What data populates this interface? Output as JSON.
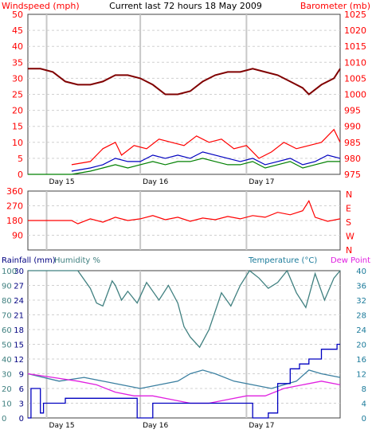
{
  "chart_data": [
    {
      "type": "line",
      "title": "Current last 72 hours 18 May 2009",
      "left_axis_label": "Windspeed (mph)",
      "right_axis_label": "Barometer (mb)",
      "left_ticks": [
        "0",
        "5",
        "10",
        "15",
        "20",
        "25",
        "30",
        "35",
        "40",
        "45",
        "50"
      ],
      "right_ticks": [
        "975",
        "980",
        "985",
        "990",
        "995",
        "1000",
        "1005",
        "1010",
        "1015",
        "1020",
        "1025"
      ],
      "ylim_left": [
        0,
        50
      ],
      "ylim_right": [
        975,
        1025
      ],
      "x_labels": [
        "Day 15",
        "Day 16",
        "Day 17"
      ],
      "day_positions": [
        0.06,
        0.36,
        0.7
      ],
      "colors": {
        "barometer": "#800000",
        "gust": "#ff0000",
        "wind": "#0000c0",
        "wind_avg": "#008000"
      },
      "series": [
        {
          "key": "barometer",
          "axis": "right",
          "color": "#800000",
          "x": [
            0,
            0.04,
            0.08,
            0.12,
            0.16,
            0.2,
            0.24,
            0.28,
            0.32,
            0.36,
            0.4,
            0.44,
            0.48,
            0.52,
            0.56,
            0.6,
            0.64,
            0.68,
            0.72,
            0.76,
            0.8,
            0.84,
            0.88,
            0.9,
            0.94,
            0.98,
            1.0
          ],
          "values": [
            1008,
            1008,
            1007,
            1004,
            1003,
            1003,
            1004,
            1006,
            1006,
            1005,
            1003,
            1000,
            1000,
            1001,
            1004,
            1006,
            1007,
            1007,
            1008,
            1007,
            1006,
            1004,
            1002,
            1000,
            1003,
            1005,
            1008
          ]
        },
        {
          "key": "gust",
          "axis": "left",
          "color": "#ff0000",
          "x": [
            0.14,
            0.2,
            0.24,
            0.28,
            0.3,
            0.34,
            0.38,
            0.42,
            0.46,
            0.5,
            0.54,
            0.58,
            0.62,
            0.66,
            0.7,
            0.74,
            0.78,
            0.82,
            0.86,
            0.9,
            0.94,
            0.98,
            1.0
          ],
          "values": [
            3,
            4,
            8,
            10,
            6,
            9,
            8,
            11,
            10,
            9,
            12,
            10,
            11,
            8,
            9,
            5,
            7,
            10,
            8,
            9,
            10,
            14,
            10
          ]
        },
        {
          "key": "wind",
          "axis": "left",
          "color": "#0000c0",
          "x": [
            0.14,
            0.2,
            0.24,
            0.28,
            0.32,
            0.36,
            0.4,
            0.44,
            0.48,
            0.52,
            0.56,
            0.6,
            0.64,
            0.68,
            0.72,
            0.76,
            0.8,
            0.84,
            0.88,
            0.92,
            0.96,
            1.0
          ],
          "values": [
            1,
            2,
            3,
            5,
            4,
            4,
            6,
            5,
            6,
            5,
            7,
            6,
            5,
            4,
            5,
            3,
            4,
            5,
            3,
            4,
            6,
            5
          ]
        },
        {
          "key": "wind_avg",
          "axis": "left",
          "color": "#008000",
          "x": [
            0.0,
            0.1,
            0.14,
            0.2,
            0.24,
            0.28,
            0.32,
            0.36,
            0.4,
            0.44,
            0.48,
            0.52,
            0.56,
            0.6,
            0.64,
            0.68,
            0.72,
            0.76,
            0.8,
            0.84,
            0.88,
            0.92,
            0.96,
            1.0
          ],
          "values": [
            0,
            0,
            0,
            1,
            2,
            3,
            2,
            3,
            4,
            3,
            4,
            4,
            5,
            4,
            3,
            3,
            4,
            2,
            3,
            4,
            2,
            3,
            4,
            4
          ]
        }
      ]
    },
    {
      "type": "line",
      "left_ticks": [
        "90",
        "180",
        "270",
        "360"
      ],
      "right_ticks": [
        "N",
        "E",
        "S",
        "W",
        "N"
      ],
      "ylim": [
        0,
        360
      ],
      "x_labels": [],
      "colors": {
        "direction": "#ff0000"
      },
      "series": [
        {
          "key": "direction",
          "color": "#ff0000",
          "x": [
            0,
            0.1,
            0.14,
            0.16,
            0.2,
            0.24,
            0.28,
            0.32,
            0.36,
            0.4,
            0.44,
            0.48,
            0.52,
            0.56,
            0.6,
            0.64,
            0.68,
            0.72,
            0.76,
            0.8,
            0.84,
            0.88,
            0.9,
            0.92,
            0.96,
            1.0
          ],
          "values": [
            180,
            180,
            180,
            160,
            190,
            170,
            200,
            180,
            190,
            210,
            185,
            200,
            175,
            195,
            185,
            205,
            190,
            210,
            200,
            230,
            215,
            240,
            300,
            200,
            175,
            190
          ]
        }
      ]
    },
    {
      "type": "line",
      "left_axis_label": "Rainfall (mm)",
      "left2_axis_label": "Humidity %",
      "right_axis_label": "Temperature (°C)",
      "right2_axis_label": "Dew Point",
      "left_ticks_rain": [
        "0",
        "3",
        "6",
        "9",
        "12",
        "15",
        "18",
        "21",
        "24",
        "27",
        "30"
      ],
      "left_ticks_hum": [
        "0",
        "10",
        "20",
        "30",
        "40",
        "50",
        "60",
        "70",
        "80",
        "90",
        "100"
      ],
      "right_ticks": [
        "0",
        "4",
        "8",
        "12",
        "16",
        "20",
        "24",
        "28",
        "32",
        "36",
        "40"
      ],
      "ylim_rain": [
        0,
        30
      ],
      "ylim_humidity": [
        0,
        100
      ],
      "ylim_temp": [
        0,
        40
      ],
      "x_labels": [
        "Day 15",
        "Day 16",
        "Day 17"
      ],
      "colors": {
        "humidity": "#408080",
        "temperature": "#3a7fa0",
        "dew_point": "#e020e0",
        "rainfall": "#0000c0"
      },
      "series": [
        {
          "key": "humidity",
          "axis": "humidity",
          "color": "#408080",
          "x": [
            0,
            0.08,
            0.16,
            0.2,
            0.22,
            0.24,
            0.27,
            0.28,
            0.3,
            0.32,
            0.35,
            0.38,
            0.42,
            0.45,
            0.48,
            0.5,
            0.52,
            0.55,
            0.58,
            0.62,
            0.65,
            0.68,
            0.71,
            0.74,
            0.77,
            0.8,
            0.83,
            0.86,
            0.89,
            0.92,
            0.95,
            0.98,
            1.0
          ],
          "values": [
            100,
            100,
            100,
            88,
            78,
            76,
            93,
            90,
            80,
            86,
            78,
            92,
            80,
            90,
            78,
            62,
            55,
            48,
            60,
            85,
            76,
            90,
            100,
            95,
            88,
            92,
            100,
            85,
            75,
            98,
            80,
            95,
            100
          ]
        },
        {
          "key": "temperature",
          "axis": "temp",
          "color": "#3a7fa0",
          "x": [
            0,
            0.1,
            0.18,
            0.24,
            0.3,
            0.36,
            0.42,
            0.48,
            0.52,
            0.56,
            0.6,
            0.66,
            0.72,
            0.78,
            0.82,
            0.86,
            0.9,
            0.94,
            1.0
          ],
          "values": [
            12,
            10,
            11,
            10,
            9,
            8,
            9,
            10,
            12,
            13,
            12,
            10,
            9,
            8,
            9,
            10,
            13,
            12,
            11
          ]
        },
        {
          "key": "dew_point",
          "axis": "temp",
          "color": "#e020e0",
          "x": [
            0,
            0.08,
            0.16,
            0.22,
            0.28,
            0.34,
            0.4,
            0.46,
            0.52,
            0.58,
            0.64,
            0.7,
            0.76,
            0.82,
            0.88,
            0.94,
            1.0
          ],
          "values": [
            12,
            11,
            10,
            9,
            7,
            6,
            6,
            5,
            4,
            4,
            5,
            6,
            6,
            8,
            9,
            10,
            9
          ]
        },
        {
          "key": "rainfall",
          "axis": "rain",
          "color": "#0000c0",
          "x": [
            0,
            0.01,
            0.01,
            0.04,
            0.04,
            0.05,
            0.05,
            0.12,
            0.12,
            0.35,
            0.35,
            0.4,
            0.4,
            0.5,
            0.5,
            0.72,
            0.72,
            0.77,
            0.77,
            0.8,
            0.8,
            0.84,
            0.84,
            0.87,
            0.87,
            0.9,
            0.9,
            0.94,
            0.94,
            0.99,
            0.99,
            1.0
          ],
          "values": [
            0,
            0,
            6,
            6,
            1,
            1,
            3,
            3,
            4,
            4,
            0,
            0,
            3,
            3,
            3,
            3,
            0,
            0,
            1,
            1,
            7,
            7,
            10,
            10,
            11,
            11,
            12,
            12,
            14,
            14,
            15,
            15
          ]
        }
      ]
    }
  ]
}
